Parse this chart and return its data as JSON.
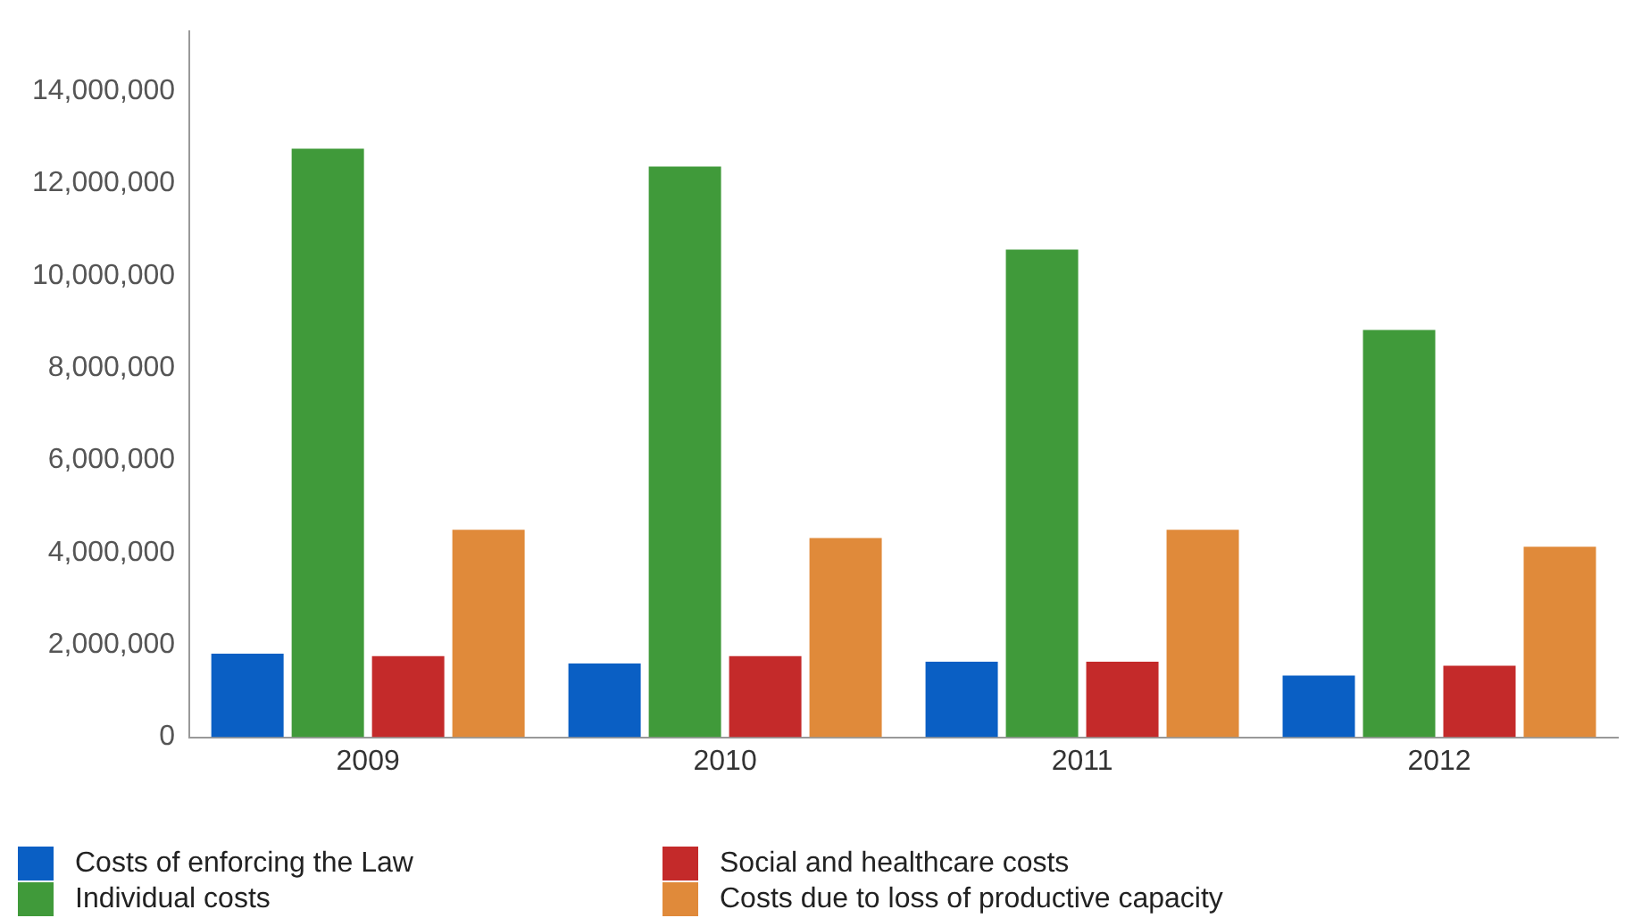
{
  "chart_data": {
    "type": "bar",
    "categories": [
      "2009",
      "2010",
      "2011",
      "2012"
    ],
    "series": [
      {
        "name": "Costs of enforcing the Law",
        "color": "#0a5fc4",
        "values": [
          1810000,
          1600000,
          1640000,
          1340000
        ]
      },
      {
        "name": "Individual costs",
        "color": "#409a3a",
        "values": [
          12760000,
          12370000,
          10570000,
          8830000
        ]
      },
      {
        "name": "Social and healthcare costs",
        "color": "#c42a2a",
        "values": [
          1760000,
          1760000,
          1640000,
          1550000
        ]
      },
      {
        "name": "Costs due to loss of productive capacity",
        "color": "#e08a3a",
        "values": [
          4500000,
          4320000,
          4500000,
          4130000
        ]
      }
    ],
    "ylim": [
      0,
      15300000
    ],
    "yticks": [
      0,
      {
        "value": 2000000,
        "label": "2,000,000"
      },
      {
        "value": 4000000,
        "label": "4,000,000"
      },
      {
        "value": 6000000,
        "label": "6,000,000"
      },
      {
        "value": 8000000,
        "label": "8,000,000"
      },
      {
        "value": 10000000,
        "label": "10,000,000"
      },
      {
        "value": 12000000,
        "label": "12,000,000"
      },
      {
        "value": 14000000,
        "label": "14,000,000"
      }
    ],
    "grid": false,
    "legend": "bottom"
  }
}
